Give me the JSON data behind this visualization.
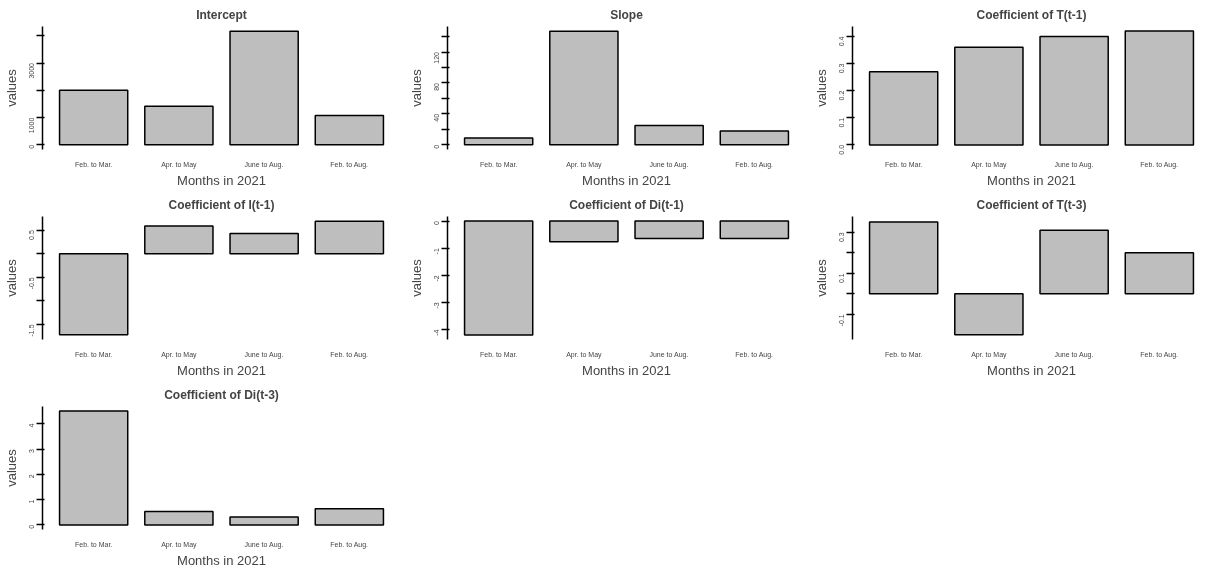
{
  "chart_data": [
    {
      "type": "bar",
      "title": "Intercept",
      "xlabel": "Months in 2021",
      "ylabel": "values",
      "categories": [
        "Feb. to Mar.",
        "Apr. to May",
        "June to Aug.",
        "Feb. to Aug."
      ],
      "values": [
        2000,
        1420,
        4170,
        1080
      ],
      "color": "#bebebe",
      "ylim": [
        -170,
        4340
      ],
      "yticks": [
        0,
        1000,
        {
          "value": 2000,
          "label": null
        },
        3000,
        {
          "value": 4000,
          "label": null
        }
      ]
    },
    {
      "type": "bar",
      "title": "Slope",
      "xlabel": "Months in 2021",
      "ylabel": "values",
      "categories": [
        "Feb. to Mar.",
        "Apr. to May",
        "June to Aug.",
        "Feb. to Aug."
      ],
      "values": [
        9,
        147,
        25,
        18
      ],
      "color": "#bebebe",
      "ylim": [
        -6,
        153
      ],
      "yticks": [
        0,
        {
          "value": 20,
          "label": null
        },
        40,
        {
          "value": 60,
          "label": null
        },
        80,
        {
          "value": 100,
          "label": null
        },
        120,
        {
          "value": 140,
          "label": null
        }
      ]
    },
    {
      "type": "bar",
      "title": "Coefficient of T(t-1)",
      "xlabel": "Months in 2021",
      "ylabel": "values",
      "categories": [
        "Feb. to Mar.",
        "Apr. to May",
        "June to Aug.",
        "Feb. to Aug."
      ],
      "values": [
        0.27,
        0.36,
        0.4,
        0.42
      ],
      "color": "#bebebe",
      "ylim": [
        -0.017,
        0.437
      ],
      "yticks": [
        {
          "value": 0,
          "label": "0.0"
        },
        0.1,
        0.2,
        0.3,
        0.4
      ]
    },
    {
      "type": "bar",
      "title": "Coefficient of I(t-1)",
      "xlabel": "Months in 2021",
      "ylabel": "values",
      "categories": [
        "Feb. to Mar.",
        "Apr. to May",
        "June to Aug.",
        "Feb. to Aug."
      ],
      "values": [
        -1.72,
        0.59,
        0.43,
        0.69
      ],
      "color": "#bebebe",
      "ylim": [
        -1.82,
        0.79
      ],
      "yticks": [
        0.5,
        {
          "value": 0,
          "label": null
        },
        -0.5,
        {
          "value": -1,
          "label": null
        },
        -1.5
      ]
    },
    {
      "type": "bar",
      "title": "Coefficient of Di(t-1)",
      "xlabel": "Months in 2021",
      "ylabel": "values",
      "categories": [
        "Feb. to Mar.",
        "Apr. to May",
        "June to Aug.",
        "Feb. to Aug."
      ],
      "values": [
        -4.2,
        -0.76,
        -0.64,
        -0.64
      ],
      "color": "#bebebe",
      "ylim": [
        -4.37,
        0.17
      ],
      "yticks": [
        0,
        -1,
        -2,
        -3,
        -4
      ]
    },
    {
      "type": "bar",
      "title": "Coefficient of T(t-3)",
      "xlabel": "Months in 2021",
      "ylabel": "values",
      "categories": [
        "Feb. to Mar.",
        "Apr. to May",
        "June to Aug.",
        "Feb. to Aug."
      ],
      "values": [
        0.35,
        -0.2,
        0.31,
        0.2
      ],
      "color": "#bebebe",
      "ylim": [
        -0.223,
        0.377
      ],
      "yticks": [
        -0.1,
        {
          "value": 0,
          "label": null
        },
        0.1,
        {
          "value": 0.2,
          "label": null
        },
        0.3
      ]
    },
    {
      "type": "bar",
      "title": "Coefficient of Di(t-3)",
      "xlabel": "Months in 2021",
      "ylabel": "values",
      "categories": [
        "Feb. to Mar.",
        "Apr. to May",
        "June to Aug.",
        "Feb. to Aug."
      ],
      "values": [
        4.5,
        0.53,
        0.31,
        0.64
      ],
      "color": "#bebebe",
      "ylim": [
        -0.18,
        4.68
      ],
      "yticks": [
        0,
        1,
        2,
        3,
        4
      ]
    }
  ]
}
